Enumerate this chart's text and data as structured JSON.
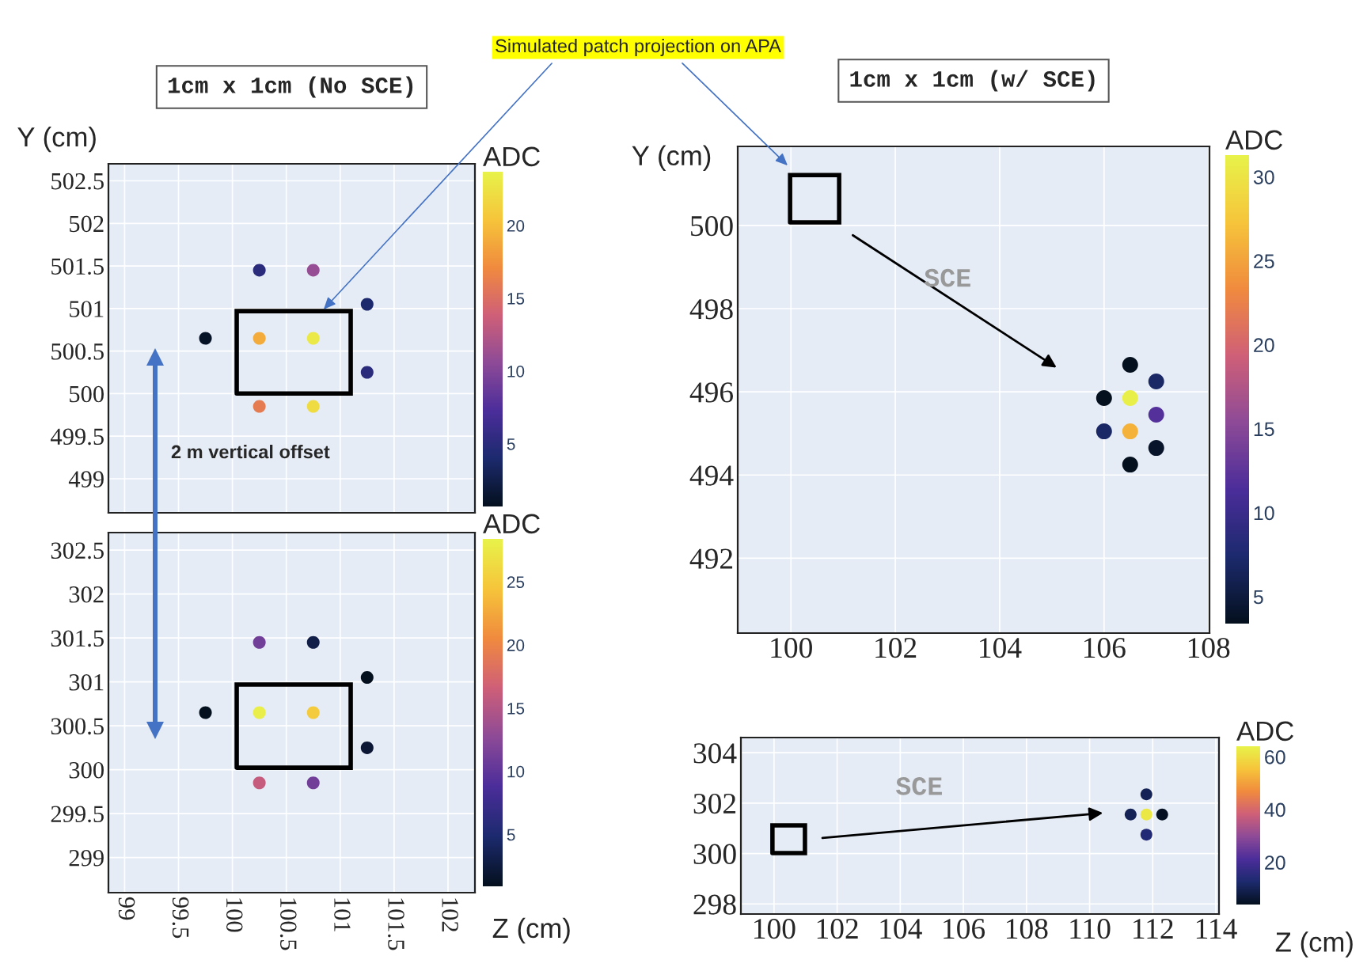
{
  "chart_data": [
    {
      "type": "scatter",
      "title": "1cm x 1cm (No SCE)",
      "ylabel": "Y (cm)",
      "clabel": "ADC",
      "marker": "circle",
      "grid": true,
      "tick_labels": "y",
      "x": [
        100.25,
        100.75,
        101.25,
        99.75,
        100.25,
        100.75,
        101.25,
        100.25,
        100.75
      ],
      "values": [
        501.45,
        501.45,
        501.05,
        500.65,
        500.65,
        500.65,
        500.25,
        499.85,
        499.85
      ],
      "cvalues": [
        5,
        11,
        4,
        1,
        19,
        23,
        5,
        16,
        22
      ],
      "xlim": [
        98.85,
        102.25
      ],
      "xticks": [
        99,
        99.5,
        100,
        100.5,
        101,
        101.5,
        102
      ],
      "ylim": [
        498.6,
        502.7
      ],
      "yticks": [
        499,
        499.5,
        500,
        500.5,
        501,
        501.5,
        502,
        502.5
      ],
      "clim": [
        0.7,
        23.7
      ],
      "cticks": [
        5,
        10,
        15,
        20
      ],
      "annotations": [
        "Simulated patch projection on APA",
        "2 m vertical offset"
      ]
    },
    {
      "type": "scatter",
      "xlabel": "Z (cm)",
      "clabel": "ADC",
      "marker": "circle",
      "grid": true,
      "x": [
        100.25,
        100.75,
        101.25,
        99.75,
        100.25,
        100.75,
        101.25,
        100.25,
        100.75
      ],
      "values": [
        301.45,
        301.45,
        301.05,
        300.65,
        300.65,
        300.65,
        300.25,
        299.85,
        299.85
      ],
      "cvalues": [
        11,
        3,
        1,
        1,
        28,
        25,
        2,
        16,
        11
      ],
      "xlim": [
        98.85,
        102.25
      ],
      "xticks": [
        99,
        99.5,
        100,
        100.5,
        101,
        101.5,
        102
      ],
      "ylim": [
        298.6,
        302.7
      ],
      "yticks": [
        299,
        299.5,
        300,
        300.5,
        301,
        301.5,
        302,
        302.5
      ],
      "clim": [
        0.9,
        28.4
      ],
      "cticks": [
        5,
        10,
        15,
        20,
        25
      ]
    },
    {
      "type": "scatter",
      "title": "1cm x 1cm (w/ SCE)",
      "ylabel": "Y (cm)",
      "clabel": "ADC",
      "marker": "circle",
      "grid": true,
      "x": [
        106.5,
        107,
        106,
        106.5,
        107,
        106,
        106.5,
        107,
        106.5
      ],
      "values": [
        496.65,
        496.25,
        495.85,
        495.85,
        495.45,
        495.05,
        495.05,
        494.65,
        494.25
      ],
      "cvalues": [
        3.5,
        7,
        3.5,
        31,
        12,
        7,
        26,
        4,
        3.5
      ],
      "xlim": [
        98.98,
        108.02
      ],
      "xticks": [
        100,
        102,
        104,
        106,
        108
      ],
      "ylim": [
        490.2,
        501.9
      ],
      "yticks": [
        492,
        494,
        496,
        498,
        500
      ],
      "clim": [
        3.4,
        31.3
      ],
      "cticks": [
        5,
        10,
        15,
        20,
        25,
        30
      ],
      "annotations": [
        "SCE"
      ]
    },
    {
      "type": "scatter",
      "xlabel": "Z (cm)",
      "clabel": "ADC",
      "marker": "circle",
      "grid": true,
      "x": [
        111.8,
        111.3,
        111.8,
        112.3,
        111.8
      ],
      "values": [
        302.35,
        301.55,
        301.55,
        301.55,
        300.75
      ],
      "cvalues": [
        10,
        10,
        62,
        4.5,
        14
      ],
      "xlim": [
        98.95,
        114.1
      ],
      "xticks": [
        100,
        102,
        104,
        106,
        108,
        110,
        112,
        114
      ],
      "ylim": [
        297.6,
        304.6
      ],
      "yticks": [
        298,
        300,
        302,
        304
      ],
      "clim": [
        4,
        64
      ],
      "cticks": [
        20,
        40,
        60
      ],
      "annotations": [
        "SCE"
      ]
    }
  ]
}
